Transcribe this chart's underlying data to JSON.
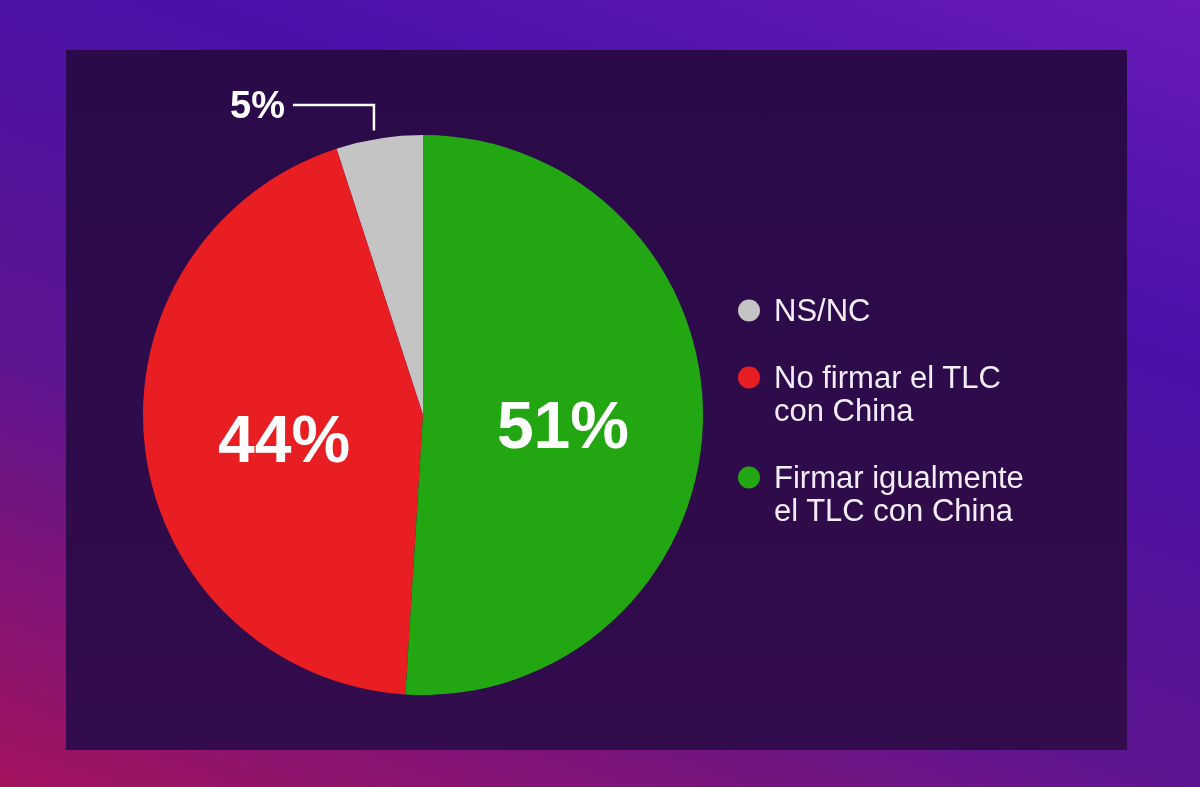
{
  "chart_data": {
    "type": "pie",
    "categories": [
      "NS/NC",
      "No firmar el TLC con China",
      "Firmar igualmente el TLC con China"
    ],
    "values": [
      5,
      44,
      51
    ],
    "colors": [
      "#c4c4c4",
      "#e91e22",
      "#22a612"
    ],
    "value_labels": [
      "5%",
      "44%",
      "51%"
    ],
    "legend": "right"
  }
}
